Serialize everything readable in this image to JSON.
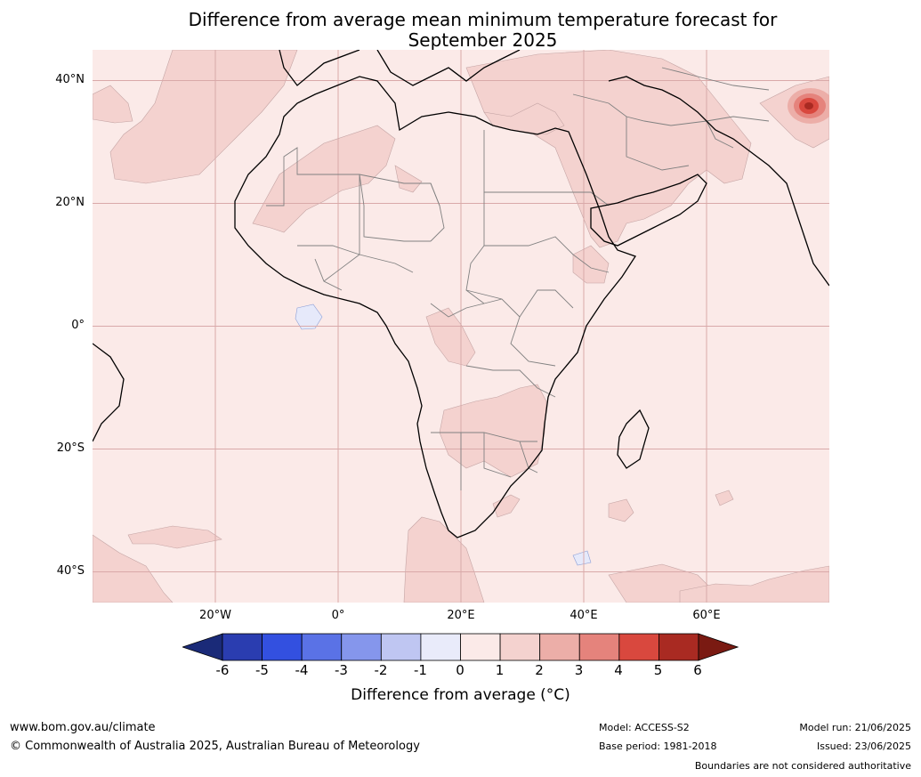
{
  "title": {
    "line1": "Difference from average mean minimum temperature forecast for",
    "line2": "September 2025"
  },
  "axes": {
    "lat_labels": [
      "40°N",
      "20°N",
      "0°",
      "20°S",
      "40°S"
    ],
    "lon_labels": [
      "20°W",
      "0°",
      "20°E",
      "40°E",
      "60°E"
    ],
    "lat_ticks_deg": [
      40,
      20,
      0,
      -20,
      -40
    ],
    "lon_ticks_deg": [
      -20,
      0,
      20,
      40,
      60
    ],
    "extent": {
      "lon_min": -40,
      "lon_max": 80,
      "lat_min": -45,
      "lat_max": 45
    }
  },
  "colorbar": {
    "label": "Difference from average (°C)",
    "ticks": [
      "-6",
      "-5",
      "-4",
      "-3",
      "-2",
      "-1",
      "0",
      "1",
      "2",
      "3",
      "4",
      "5",
      "6"
    ],
    "extend_low_color": "#1a2a78",
    "extend_high_color": "#7a1a12",
    "bins": [
      {
        "range": "-6 to -5",
        "color": "#2a3db0"
      },
      {
        "range": "-5 to -4",
        "color": "#3350e0"
      },
      {
        "range": "-4 to -3",
        "color": "#5a72e6"
      },
      {
        "range": "-3 to -2",
        "color": "#8596ec"
      },
      {
        "range": "-2 to -1",
        "color": "#bfc6f2"
      },
      {
        "range": "-1 to 0",
        "color": "#e9ebfa"
      },
      {
        "range": "0 to 1",
        "color": "#fbeae8"
      },
      {
        "range": "1 to 2",
        "color": "#f4d2cf"
      },
      {
        "range": "2 to 3",
        "color": "#ecaea8"
      },
      {
        "range": "3 to 4",
        "color": "#e5837c"
      },
      {
        "range": "4 to 5",
        "color": "#d9483e"
      },
      {
        "range": "5 to 6",
        "color": "#a92a22"
      }
    ]
  },
  "map_colors": {
    "background": "#fbeae8",
    "anomaly_1_2": "#f4d2cf",
    "anomaly_neg": "#e6e9fa",
    "hotspot": [
      "#ecaea8",
      "#e5837c",
      "#d9483e",
      "#a92a22"
    ],
    "coastline": "#000000",
    "borders": "#808080",
    "gridlines": "#d9a9a9"
  },
  "footer": {
    "website": "www.bom.gov.au/climate",
    "copyright": "© Commonwealth of Australia 2025, Australian Bureau of Meteorology",
    "model": "Model: ACCESS-S2",
    "base_period": "Base period: 1981-2018",
    "model_run": "Model run: 21/06/2025",
    "issued": "Issued: 23/06/2025",
    "disclaimer": "Boundaries are not considered authoritative"
  }
}
